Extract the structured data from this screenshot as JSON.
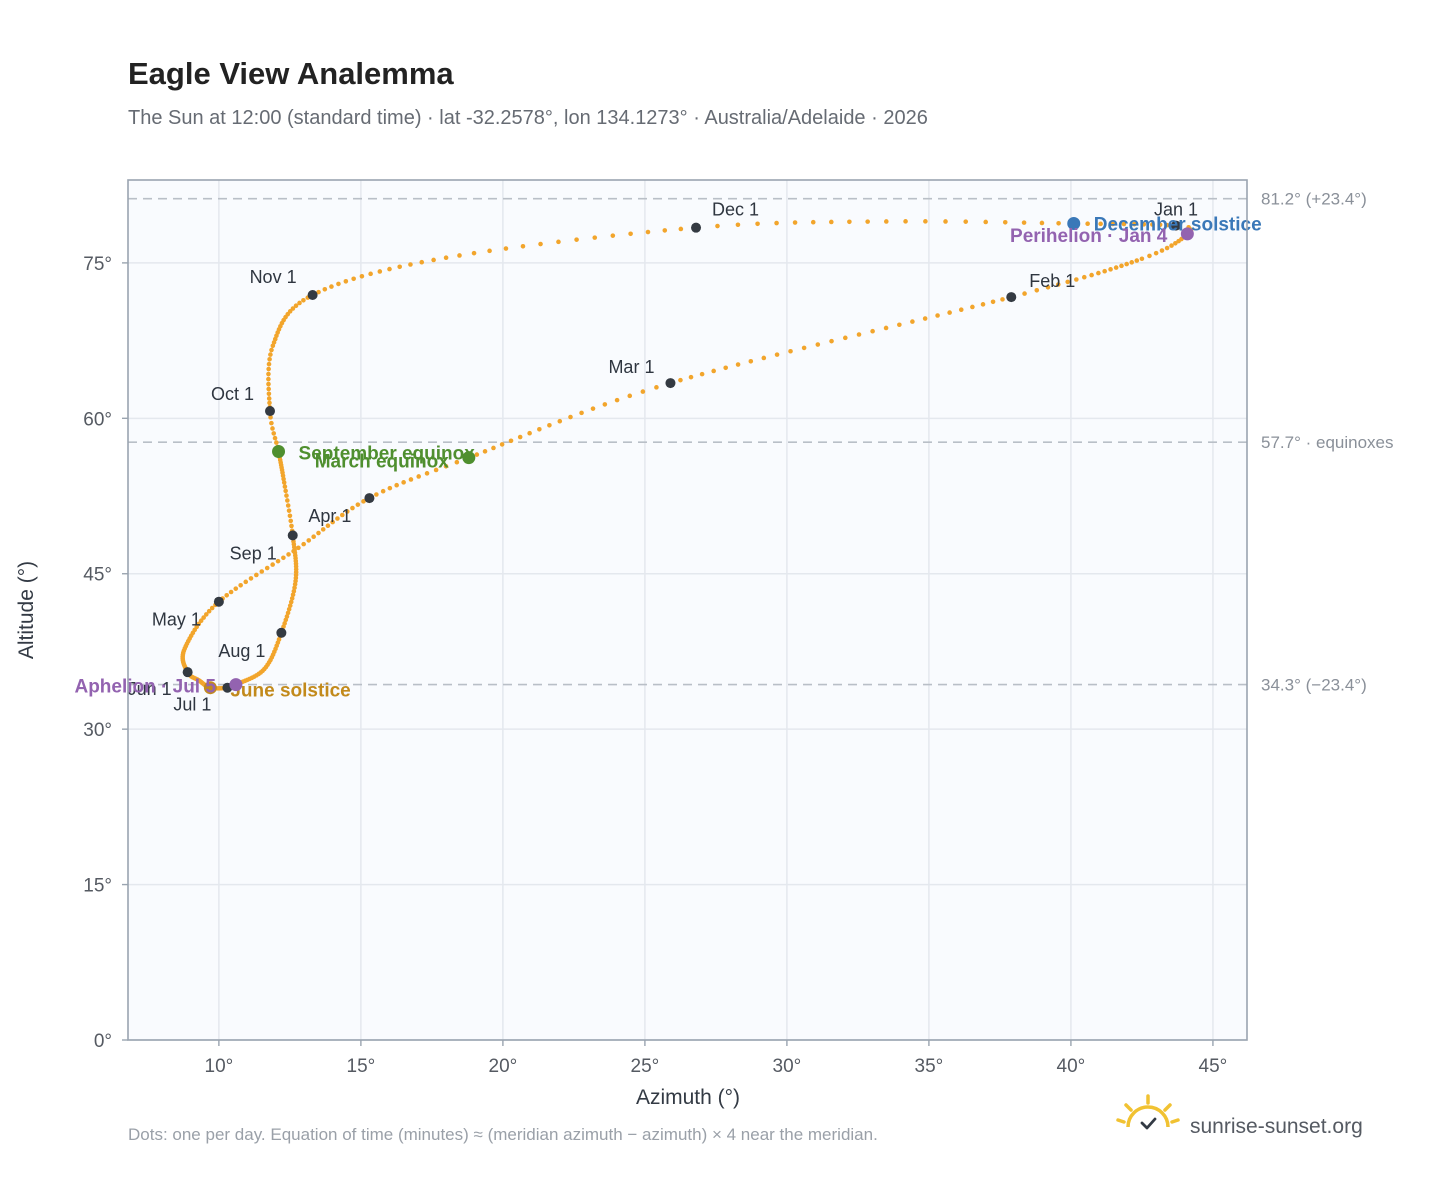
{
  "header": {
    "title": "Eagle View Analemma",
    "subtitle": "The Sun at 12:00 (standard time) · lat -32.2578°, lon 134.1273° · Australia/Adelaide · 2026"
  },
  "footer": {
    "note": "Dots: one per day. Equation of time (minutes) ≈ (meridian azimuth − azimuth) × 4 near the meridian.",
    "brand": "sunrise-sunset.org",
    "brand_icon": "sun-check-logo-icon"
  },
  "colors": {
    "path": "#f2a52c",
    "month_marker": "#343a42",
    "equinox": "#4f8f2f",
    "december_solstice": "#3a78b8",
    "june_solstice": "#c28a1c",
    "apsis": "#9363b0",
    "grid": "#e4e8ee",
    "ref_line": "#b9bfc7",
    "plot_bg": "#f9fbfe",
    "frame": "#9aa4b0"
  },
  "chart_data": {
    "type": "scatter",
    "xlabel": "Azimuth (°)",
    "ylabel": "Altitude (°)",
    "xlim": [
      6.8,
      46.2
    ],
    "ylim": [
      0,
      83
    ],
    "x_ticks": [
      10,
      15,
      20,
      25,
      30,
      35,
      40,
      45
    ],
    "y_ticks": [
      0,
      15,
      30,
      45,
      60,
      75
    ],
    "x_tick_labels": [
      "10°",
      "15°",
      "20°",
      "25°",
      "30°",
      "35°",
      "40°",
      "45°"
    ],
    "y_tick_labels": [
      "0°",
      "15°",
      "30°",
      "45°",
      "60°",
      "75°"
    ],
    "grid": true,
    "reference_lines": [
      {
        "y": 81.2,
        "label": "81.2° (+23.4°)"
      },
      {
        "y": 57.7,
        "label": "57.7° · equinoxes"
      },
      {
        "y": 34.3,
        "label": "34.3° (−23.4°)"
      }
    ],
    "path_anchors": [
      {
        "day": 1,
        "azimuth": 43.7,
        "altitude": 78.6
      },
      {
        "day": 4,
        "azimuth": 44.1,
        "altitude": 77.8
      },
      {
        "day": 15,
        "azimuth": 42.5,
        "altitude": 75.4
      },
      {
        "day": 32,
        "azimuth": 37.9,
        "altitude": 71.7
      },
      {
        "day": 60,
        "azimuth": 25.9,
        "altitude": 63.4
      },
      {
        "day": 79,
        "azimuth": 18.8,
        "altitude": 56.2
      },
      {
        "day": 91,
        "azimuth": 15.3,
        "altitude": 52.3
      },
      {
        "day": 105,
        "azimuth": 12.8,
        "altitude": 47.5
      },
      {
        "day": 121,
        "azimuth": 10.0,
        "altitude": 42.3
      },
      {
        "day": 137,
        "azimuth": 8.8,
        "altitude": 37.8
      },
      {
        "day": 152,
        "azimuth": 8.9,
        "altitude": 35.5
      },
      {
        "day": 160,
        "azimuth": 9.3,
        "altitude": 34.7
      },
      {
        "day": 172,
        "azimuth": 9.7,
        "altitude": 34.0
      },
      {
        "day": 182,
        "azimuth": 10.3,
        "altitude": 34.0
      },
      {
        "day": 186,
        "azimuth": 10.6,
        "altitude": 34.3
      },
      {
        "day": 200,
        "azimuth": 11.6,
        "altitude": 35.8
      },
      {
        "day": 213,
        "azimuth": 12.2,
        "altitude": 39.3
      },
      {
        "day": 228,
        "azimuth": 12.7,
        "altitude": 44.3
      },
      {
        "day": 244,
        "azimuth": 12.6,
        "altitude": 48.7
      },
      {
        "day": 255,
        "azimuth": 12.3,
        "altitude": 53.8
      },
      {
        "day": 266,
        "azimuth": 12.1,
        "altitude": 56.8
      },
      {
        "day": 274,
        "azimuth": 11.8,
        "altitude": 60.7
      },
      {
        "day": 288,
        "azimuth": 11.9,
        "altitude": 67.0
      },
      {
        "day": 305,
        "azimuth": 13.3,
        "altitude": 71.9
      },
      {
        "day": 320,
        "azimuth": 18.0,
        "altitude": 75.5
      },
      {
        "day": 335,
        "azimuth": 26.8,
        "altitude": 78.4
      },
      {
        "day": 345,
        "azimuth": 33.5,
        "altitude": 79.0
      },
      {
        "day": 355,
        "azimuth": 40.1,
        "altitude": 78.8
      },
      {
        "day": 365,
        "azimuth": 43.6,
        "altitude": 78.6
      }
    ],
    "month_markers": [
      {
        "label": "Jan 1",
        "azimuth": 43.7,
        "altitude": 78.6,
        "anchor": "middle",
        "dx": 0,
        "dy": -10
      },
      {
        "label": "Feb 1",
        "azimuth": 37.9,
        "altitude": 71.7,
        "anchor": "start",
        "dx": 18,
        "dy": -10
      },
      {
        "label": "Mar 1",
        "azimuth": 25.9,
        "altitude": 63.4,
        "anchor": "end",
        "dx": -16,
        "dy": -10
      },
      {
        "label": "Apr 1",
        "azimuth": 15.3,
        "altitude": 52.3,
        "anchor": "end",
        "dx": -18,
        "dy": 24
      },
      {
        "label": "May 1",
        "azimuth": 10.0,
        "altitude": 42.3,
        "anchor": "end",
        "dx": -18,
        "dy": 24
      },
      {
        "label": "Jun 1",
        "azimuth": 8.9,
        "altitude": 35.5,
        "anchor": "end",
        "dx": -16,
        "dy": 23
      },
      {
        "label": "Jul 1",
        "azimuth": 10.3,
        "altitude": 34.0,
        "anchor": "end",
        "dx": -16,
        "dy": 23
      },
      {
        "label": "Aug 1",
        "azimuth": 12.2,
        "altitude": 39.3,
        "anchor": "end",
        "dx": -16,
        "dy": 24
      },
      {
        "label": "Sep 1",
        "azimuth": 12.6,
        "altitude": 48.7,
        "anchor": "end",
        "dx": -16,
        "dy": 24
      },
      {
        "label": "Oct 1",
        "azimuth": 11.8,
        "altitude": 60.7,
        "anchor": "end",
        "dx": -16,
        "dy": -11
      },
      {
        "label": "Nov 1",
        "azimuth": 13.3,
        "altitude": 71.9,
        "anchor": "end",
        "dx": -16,
        "dy": -12
      },
      {
        "label": "Dec 1",
        "azimuth": 26.8,
        "altitude": 78.4,
        "anchor": "start",
        "dx": 16,
        "dy": -12
      }
    ],
    "events": [
      {
        "label": "December solstice",
        "azimuth": 40.1,
        "altitude": 78.8,
        "color_key": "december_solstice",
        "anchor": "start",
        "dx": 20,
        "dy": 7
      },
      {
        "label": "Perihelion · Jan 4",
        "azimuth": 44.1,
        "altitude": 77.8,
        "color_key": "apsis",
        "anchor": "end",
        "dx": -20,
        "dy": 8
      },
      {
        "label": "March equinox",
        "azimuth": 18.8,
        "altitude": 56.2,
        "color_key": "equinox",
        "anchor": "end",
        "dx": -20,
        "dy": 10
      },
      {
        "label": "September equinox",
        "azimuth": 12.1,
        "altitude": 56.8,
        "color_key": "equinox",
        "anchor": "start",
        "dx": 20,
        "dy": 8
      },
      {
        "label": "June solstice",
        "azimuth": 9.7,
        "altitude": 34.0,
        "color_key": "june_solstice",
        "anchor": "start",
        "dx": 20,
        "dy": 9
      },
      {
        "label": "Aphelion · Jul 5",
        "azimuth": 10.6,
        "altitude": 34.3,
        "color_key": "apsis",
        "anchor": "end",
        "dx": -20,
        "dy": 8
      }
    ]
  }
}
